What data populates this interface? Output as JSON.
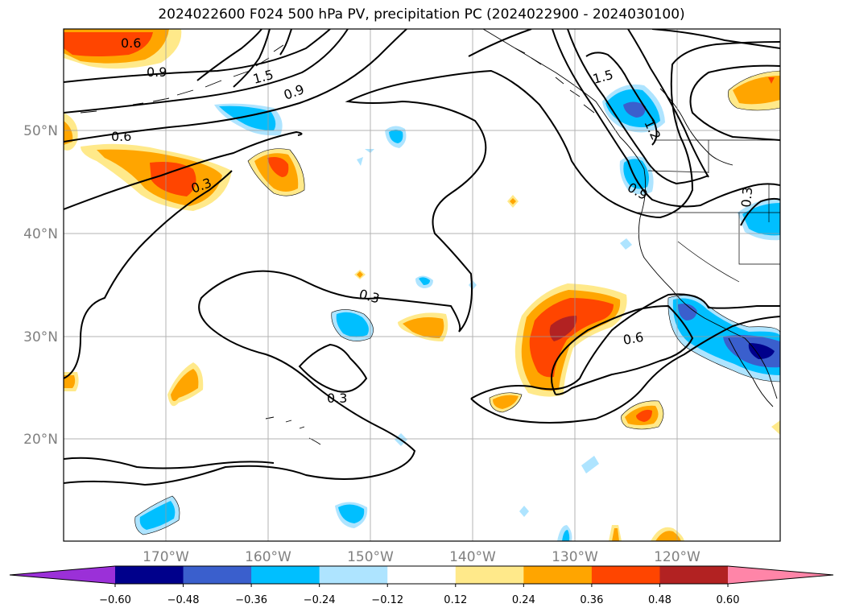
{
  "title": "2024022600 F024 500 hPa PV, precipitation PC (2024022900 - 2024030100)",
  "lat_labels": [
    "50°N",
    "40°N",
    "30°N",
    "20°N"
  ],
  "lon_labels": [
    "170°W",
    "160°W",
    "150°W",
    "140°W",
    "130°W",
    "120°W"
  ],
  "contour_labels": {
    "c06_nw": "0.6",
    "c09_nw": "0.9",
    "c15_nw": "1.5",
    "c09_mid": "0.9",
    "c06_w": "0.6",
    "c03_w": "0.3",
    "c03_center": "0.3",
    "c03_hawaii": "0.3",
    "c15_ne": "1.5",
    "c12_ne": "1.2",
    "c09_ne": "0.9",
    "c03_ne": "0.3",
    "c06_se": "0.6"
  },
  "colorbar": {
    "ticks": [
      "−0.60",
      "−0.48",
      "−0.36",
      "−0.24",
      "−0.12",
      "0.12",
      "0.24",
      "0.36",
      "0.48",
      "0.60"
    ],
    "colors": [
      "#9b30d8",
      "#00008b",
      "#3a5fcd",
      "#00bfff",
      "#aee4ff",
      "#ffffff",
      "#ffe98a",
      "#ffa500",
      "#ff4500",
      "#b22222",
      "#ff85a8"
    ]
  }
}
